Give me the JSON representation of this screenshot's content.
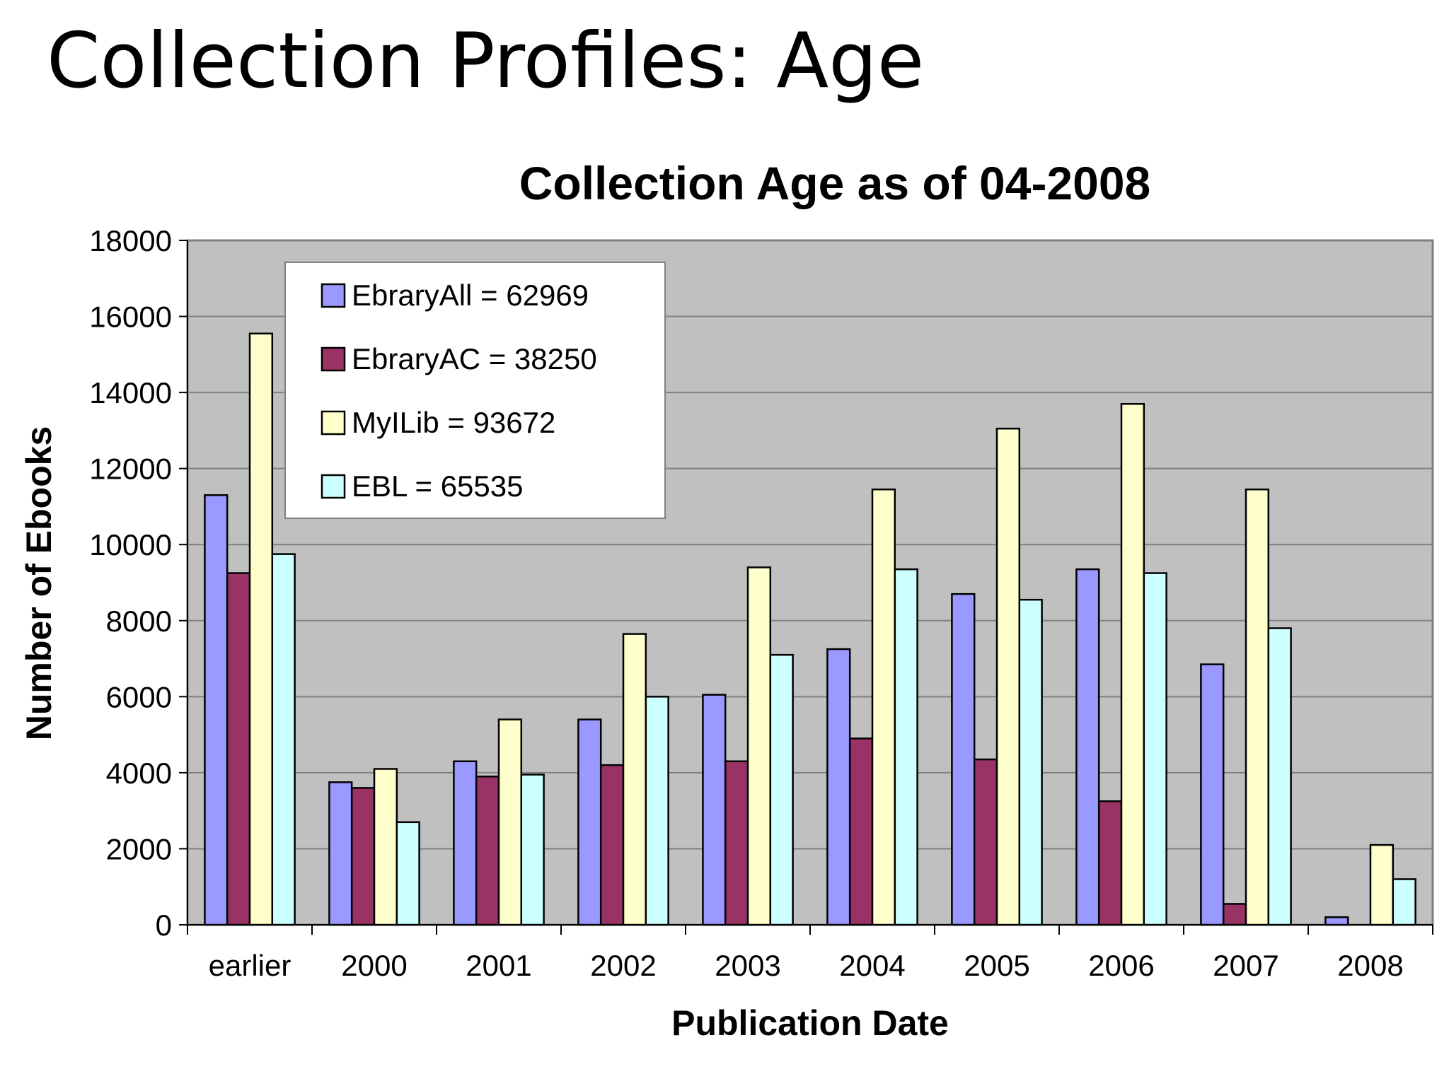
{
  "slide": {
    "title": "Collection Profiles: Age"
  },
  "chart_data": {
    "type": "bar",
    "title": "Collection Age as of 04-2008",
    "xlabel": "Publication Date",
    "ylabel": "Number of Ebooks",
    "ylim": [
      0,
      18000
    ],
    "yticks": [
      "0",
      "2000",
      "4000",
      "6000",
      "8000",
      "10000",
      "12000",
      "14000",
      "16000",
      "18000"
    ],
    "categories": [
      "earlier",
      "2000",
      "2001",
      "2002",
      "2003",
      "2004",
      "2005",
      "2006",
      "2007",
      "2008"
    ],
    "grid": true,
    "legend_placement": "top-left inside plot",
    "plot_background": "#c0c0c0",
    "series": [
      {
        "name": "EbraryAll = 62969",
        "color": "#9999ff",
        "values": [
          11300,
          3750,
          4300,
          5400,
          6050,
          7250,
          8700,
          9350,
          6850,
          200
        ]
      },
      {
        "name": "EbraryAC = 38250",
        "color": "#993366",
        "values": [
          9250,
          3600,
          3900,
          4200,
          4300,
          4900,
          4350,
          3250,
          550,
          0
        ]
      },
      {
        "name": "MyILib = 93672",
        "color": "#ffffcc",
        "values": [
          15550,
          4100,
          5400,
          7650,
          9400,
          11450,
          13050,
          13700,
          11450,
          2100
        ]
      },
      {
        "name": "EBL = 65535",
        "color": "#ccffff",
        "values": [
          9750,
          2700,
          3950,
          6000,
          7100,
          9350,
          8550,
          9250,
          7800,
          1200
        ]
      }
    ]
  }
}
